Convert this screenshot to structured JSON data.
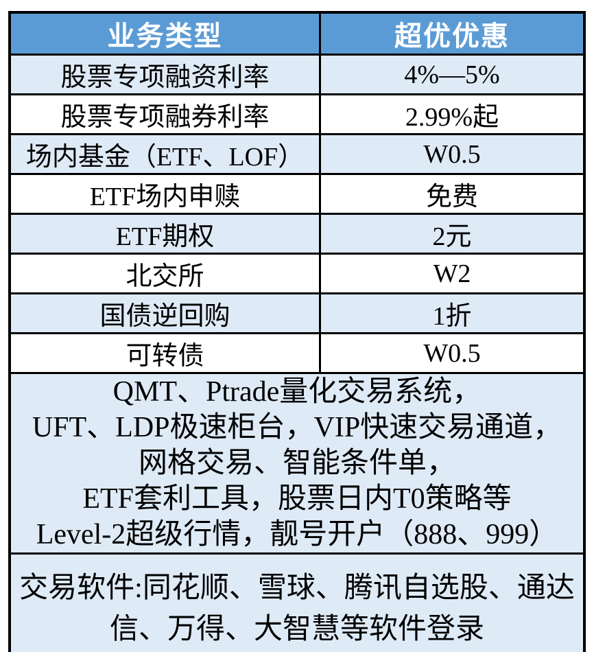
{
  "table": {
    "header": {
      "col1": "业务类型",
      "col2": "超优优惠"
    },
    "rows": [
      {
        "business_type": "股票专项融资利率",
        "discount": "4%—5%"
      },
      {
        "business_type": "股票专项融券利率",
        "discount": "2.99%起"
      },
      {
        "business_type": "场内基金（ETF、LOF）",
        "discount": "W0.5"
      },
      {
        "business_type": "ETF场内申赎",
        "discount": "免费"
      },
      {
        "business_type": "ETF期权",
        "discount": "2元"
      },
      {
        "business_type": "北交所",
        "discount": "W2"
      },
      {
        "business_type": "国债逆回购",
        "discount": "1折"
      },
      {
        "business_type": "可转债",
        "discount": "W0.5"
      }
    ],
    "features_block": {
      "lines": [
        "QMT、Ptrade量化交易系统，",
        "UFT、LDP极速柜台，VIP快速交易通道，",
        "网格交易、智能条件单，",
        "ETF套利工具，股票日内T0策略等",
        "Level-2超级行情，靓号开户（888、999）"
      ]
    },
    "software_block": {
      "text": "交易软件:同花顺、雪球、腾讯自选股、通达信、万得、大智慧等软件登录"
    },
    "colors": {
      "header_bg": "#5B9BD5",
      "header_text": "#FFFFFF",
      "row_alt_bg": "#DEEAF6",
      "row_bg": "#FFFFFF",
      "border": "#000000",
      "body_text": "#000000"
    }
  },
  "chart_data": {
    "type": "table",
    "title": "",
    "columns": [
      "业务类型",
      "超优优惠"
    ],
    "rows": [
      [
        "股票专项融资利率",
        "4%—5%"
      ],
      [
        "股票专项融券利率",
        "2.99%起"
      ],
      [
        "场内基金（ETF、LOF）",
        "W0.5"
      ],
      [
        "ETF场内申赎",
        "免费"
      ],
      [
        "ETF期权",
        "2元"
      ],
      [
        "北交所",
        "W2"
      ],
      [
        "国债逆回购",
        "1折"
      ],
      [
        "可转债",
        "W0.5"
      ]
    ],
    "merged_notes": [
      "QMT、Ptrade量化交易系统，UFT、LDP极速柜台，VIP快速交易通道，网格交易、智能条件单，ETF套利工具，股票日内T0策略等Level-2超级行情，靓号开户（888、999）",
      "交易软件:同花顺、雪球、腾讯自选股、通达信、万得、大智慧等软件登录"
    ],
    "layout_hints": {
      "header_fill": "#5B9BD5",
      "alternating_row_fill": [
        "#DEEAF6",
        "#FFFFFF"
      ],
      "grid": true
    }
  }
}
